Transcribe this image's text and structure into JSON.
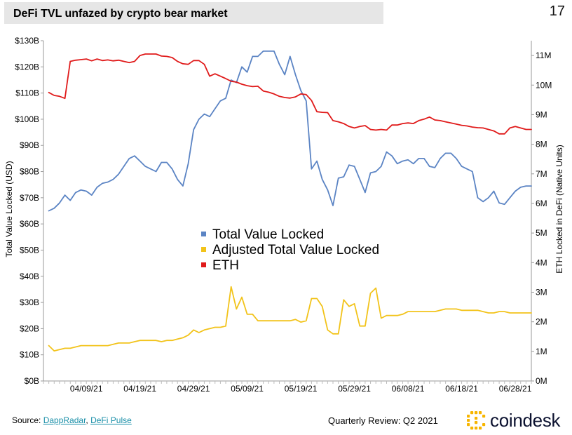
{
  "header": {
    "title": "DeFi TVL unfazed by crypto bear market",
    "page_number": "17"
  },
  "footer": {
    "source_prefix": "Source: ",
    "source_link_1": "DappRadar",
    "source_separator": ", ",
    "source_link_2": "DeFi Pulse",
    "review_text": "Quarterly Review: Q2 2021",
    "brand_name": "coindesk"
  },
  "colors": {
    "tvl": "#5b84c4",
    "adjusted": "#f2c31a",
    "eth": "#e01a1a",
    "brand_accent": "#f7b500",
    "brand_text": "#0c1230"
  },
  "chart_data": {
    "type": "line",
    "title": "DeFi TVL unfazed by crypto bear market",
    "ylabel": "Total Value Locked (USD)",
    "y2label": "ETH Locked in DeFi (Native Units)",
    "xlabel": "",
    "ylim": [
      0,
      130
    ],
    "y2lim": [
      0,
      11.5
    ],
    "left_ticks": [
      {
        "v": 0,
        "label": "$0B"
      },
      {
        "v": 10,
        "label": "$10B"
      },
      {
        "v": 20,
        "label": "$20B"
      },
      {
        "v": 30,
        "label": "$30B"
      },
      {
        "v": 40,
        "label": "$40B"
      },
      {
        "v": 50,
        "label": "$50B"
      },
      {
        "v": 60,
        "label": "$60B"
      },
      {
        "v": 70,
        "label": "$70B"
      },
      {
        "v": 80,
        "label": "$80B"
      },
      {
        "v": 90,
        "label": "$90B"
      },
      {
        "v": 100,
        "label": "$100B"
      },
      {
        "v": 110,
        "label": "$110B"
      },
      {
        "v": 120,
        "label": "$120B"
      },
      {
        "v": 130,
        "label": "$130B"
      }
    ],
    "right_ticks": [
      {
        "v": 0,
        "label": "0M"
      },
      {
        "v": 1,
        "label": "1M"
      },
      {
        "v": 2,
        "label": "2M"
      },
      {
        "v": 3,
        "label": "3M"
      },
      {
        "v": 4,
        "label": "4M"
      },
      {
        "v": 5,
        "label": "5M"
      },
      {
        "v": 6,
        "label": "6M"
      },
      {
        "v": 7,
        "label": "7M"
      },
      {
        "v": 8,
        "label": "8M"
      },
      {
        "v": 9,
        "label": "9M"
      },
      {
        "v": 10,
        "label": "10M"
      },
      {
        "v": 11,
        "label": "11M"
      }
    ],
    "x_ticks": [
      {
        "v": 8,
        "label": "04/09/21"
      },
      {
        "v": 18,
        "label": "04/19/21"
      },
      {
        "v": 28,
        "label": "04/29/21"
      },
      {
        "v": 38,
        "label": "05/09/21"
      },
      {
        "v": 48,
        "label": "05/19/21"
      },
      {
        "v": 58,
        "label": "05/29/21"
      },
      {
        "v": 68,
        "label": "06/08/21"
      },
      {
        "v": 78,
        "label": "06/18/21"
      },
      {
        "v": 88,
        "label": "06/28/21"
      }
    ],
    "x_range": [
      0,
      91
    ],
    "legend": {
      "position": "center",
      "entries": [
        "Total Value Locked",
        "Adjusted Total Value Locked",
        "ETH"
      ]
    },
    "series": [
      {
        "name": "Total Value Locked",
        "axis": "left",
        "x": [
          1,
          2,
          3,
          4,
          5,
          6,
          7,
          8,
          9,
          10,
          11,
          12,
          13,
          14,
          15,
          16,
          17,
          18,
          19,
          20,
          21,
          22,
          23,
          24,
          25,
          26,
          27,
          28,
          29,
          30,
          31,
          32,
          33,
          34,
          35,
          36,
          37,
          38,
          39,
          40,
          41,
          42,
          43,
          44,
          45,
          46,
          47,
          48,
          49,
          50,
          51,
          52,
          53,
          54,
          55,
          56,
          57,
          58,
          59,
          60,
          61,
          62,
          63,
          64,
          65,
          66,
          67,
          68,
          69,
          70,
          71,
          72,
          73,
          74,
          75,
          76,
          77,
          78,
          79,
          80,
          81,
          82,
          83,
          84,
          85,
          86,
          87,
          88,
          89,
          90,
          91
        ],
        "values": [
          65,
          66,
          68,
          71,
          69,
          72,
          73,
          72.5,
          71,
          74,
          75.5,
          76,
          77,
          79,
          82,
          85,
          86,
          84,
          82,
          81,
          80,
          83.5,
          83.5,
          81,
          77,
          74.5,
          83,
          96,
          100,
          102,
          101,
          104,
          107,
          108,
          115,
          114,
          120,
          118,
          124,
          124,
          126,
          126,
          126,
          121,
          117,
          124,
          117,
          111,
          107,
          81,
          84,
          77,
          73,
          67,
          77.5,
          78,
          82.5,
          82,
          77,
          72,
          79.5,
          80,
          82,
          87.5,
          86,
          83,
          84,
          84.5,
          83,
          85,
          85,
          82,
          81.5,
          85,
          87,
          87,
          85,
          82,
          81,
          80,
          70,
          68.5,
          70,
          72.5,
          68,
          67.5,
          70,
          72.5,
          74,
          74.5,
          74.5
        ]
      },
      {
        "name": "Adjusted Total Value Locked",
        "axis": "left",
        "x": [
          1,
          2,
          3,
          4,
          5,
          6,
          7,
          8,
          9,
          10,
          11,
          12,
          13,
          14,
          15,
          16,
          17,
          18,
          19,
          20,
          21,
          22,
          23,
          24,
          25,
          26,
          27,
          28,
          29,
          30,
          31,
          32,
          33,
          34,
          35,
          36,
          37,
          38,
          39,
          40,
          41,
          42,
          43,
          44,
          45,
          46,
          47,
          48,
          49,
          50,
          51,
          52,
          53,
          54,
          55,
          56,
          57,
          58,
          59,
          60,
          61,
          62,
          63,
          64,
          65,
          66,
          67,
          68,
          69,
          70,
          71,
          72,
          73,
          74,
          75,
          76,
          77,
          78,
          79,
          80,
          81,
          82,
          83,
          84,
          85,
          86,
          87,
          88,
          89,
          90,
          91
        ],
        "values": [
          13.5,
          11.5,
          12,
          12.5,
          12.5,
          13,
          13.5,
          13.5,
          13.5,
          13.5,
          13.5,
          13.5,
          14,
          14.5,
          14.5,
          14.5,
          15,
          15.5,
          15.5,
          15.5,
          15.5,
          15,
          15.5,
          15.5,
          16,
          16.5,
          17.5,
          19.5,
          18.5,
          19.5,
          20,
          20.5,
          20.5,
          21,
          36,
          27.5,
          32,
          25.5,
          25.5,
          23,
          23,
          23,
          23,
          23,
          23,
          23,
          23.5,
          22.5,
          23,
          31.5,
          31.5,
          28.5,
          19.5,
          18,
          18,
          31,
          28.5,
          29.5,
          21,
          21,
          33.5,
          35.5,
          24,
          25,
          25,
          25,
          25.5,
          26.5,
          26.5,
          26.5,
          26.5,
          26.5,
          26.5,
          27,
          27.5,
          27.5,
          27.5,
          27,
          27,
          27,
          27,
          26.5,
          26,
          26,
          26.5,
          26.5,
          26,
          26,
          26,
          26,
          26
        ]
      },
      {
        "name": "ETH",
        "axis": "right",
        "x": [
          1,
          2,
          3,
          4,
          5,
          6,
          7,
          8,
          9,
          10,
          11,
          12,
          13,
          14,
          15,
          16,
          17,
          18,
          19,
          20,
          21,
          22,
          23,
          24,
          25,
          26,
          27,
          28,
          29,
          30,
          31,
          32,
          33,
          34,
          35,
          36,
          37,
          38,
          39,
          40,
          41,
          42,
          43,
          44,
          45,
          46,
          47,
          48,
          49,
          50,
          51,
          52,
          53,
          54,
          55,
          56,
          57,
          58,
          59,
          60,
          61,
          62,
          63,
          64,
          65,
          66,
          67,
          68,
          69,
          70,
          71,
          72,
          73,
          74,
          75,
          76,
          77,
          78,
          79,
          80,
          81,
          82,
          83,
          84,
          85,
          86,
          87,
          88,
          89,
          90,
          91
        ],
        "values": [
          9.75,
          9.65,
          9.62,
          9.55,
          10.8,
          10.84,
          10.86,
          10.88,
          10.82,
          10.88,
          10.83,
          10.85,
          10.82,
          10.84,
          10.8,
          10.76,
          10.8,
          11.0,
          11.05,
          11.05,
          11.05,
          10.98,
          10.97,
          10.93,
          10.8,
          10.72,
          10.7,
          10.83,
          10.83,
          10.7,
          10.3,
          10.38,
          10.3,
          10.22,
          10.13,
          10.1,
          10.03,
          9.98,
          9.95,
          9.96,
          9.8,
          9.76,
          9.7,
          9.62,
          9.58,
          9.56,
          9.6,
          9.7,
          9.68,
          9.48,
          9.1,
          9.08,
          9.07,
          8.8,
          8.76,
          8.7,
          8.6,
          8.55,
          8.6,
          8.63,
          8.5,
          8.48,
          8.5,
          8.48,
          8.65,
          8.65,
          8.7,
          8.72,
          8.7,
          8.8,
          8.85,
          8.92,
          8.82,
          8.8,
          8.76,
          8.72,
          8.68,
          8.64,
          8.62,
          8.58,
          8.56,
          8.55,
          8.5,
          8.45,
          8.35,
          8.35,
          8.55,
          8.6,
          8.55,
          8.5,
          8.5
        ]
      }
    ]
  }
}
